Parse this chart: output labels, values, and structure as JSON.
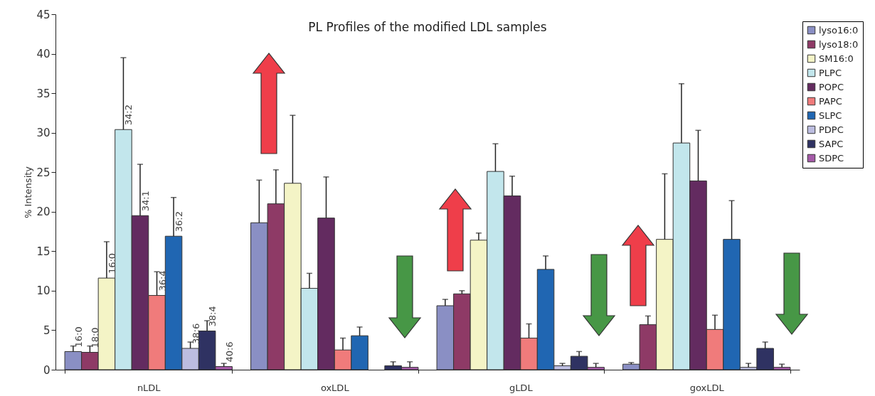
{
  "chart_data": {
    "type": "bar",
    "title": "PL  Profiles of  the modified LDL  samples",
    "ylabel": "% Intensity",
    "categories": [
      "nLDL",
      "oxLDL",
      "gLDL",
      "goxLDL"
    ],
    "series": [
      {
        "name": "lyso16:0",
        "color": "#8a8fc4",
        "values": [
          2.3,
          18.6,
          8.1,
          0.7
        ],
        "errors": [
          [
            2.3,
            3.0
          ],
          [
            18.6,
            24.0
          ],
          [
            8.1,
            8.9
          ],
          [
            0.7,
            0.9
          ]
        ],
        "value_labels": [
          "16:0",
          null,
          null,
          null
        ]
      },
      {
        "name": "lyso18:0",
        "color": "#8e3a66",
        "values": [
          2.2,
          21.0,
          9.6,
          5.7
        ],
        "errors": [
          [
            2.2,
            3.0
          ],
          [
            21.0,
            25.3
          ],
          [
            9.6,
            10.0
          ],
          [
            5.7,
            6.8
          ]
        ],
        "value_labels": [
          "18:0",
          null,
          null,
          null
        ]
      },
      {
        "name": "SM16:0",
        "color": "#f4f4c6",
        "values": [
          11.6,
          23.6,
          16.4,
          16.5
        ],
        "errors": [
          [
            11.6,
            16.2
          ],
          [
            23.6,
            32.2
          ],
          [
            16.4,
            17.3
          ],
          [
            16.5,
            24.8
          ]
        ],
        "value_labels": [
          "16:0",
          null,
          null,
          null
        ]
      },
      {
        "name": "PLPC",
        "color": "#c2e6ec",
        "values": [
          30.4,
          10.3,
          25.1,
          28.7
        ],
        "errors": [
          [
            30.4,
            39.5
          ],
          [
            10.3,
            12.2
          ],
          [
            25.1,
            28.6
          ],
          [
            28.7,
            36.2
          ]
        ],
        "value_labels": [
          "34:2",
          null,
          null,
          null
        ]
      },
      {
        "name": "POPC",
        "color": "#632b60",
        "values": [
          19.5,
          19.2,
          22.0,
          23.9
        ],
        "errors": [
          [
            19.5,
            26.0
          ],
          [
            19.2,
            24.4
          ],
          [
            22.0,
            24.5
          ],
          [
            23.9,
            30.3
          ]
        ],
        "value_labels": [
          "34:1",
          null,
          null,
          null
        ]
      },
      {
        "name": "PAPC",
        "color": "#f07b7b",
        "values": [
          9.4,
          2.5,
          4.0,
          5.1
        ],
        "errors": [
          [
            9.4,
            12.4
          ],
          [
            2.5,
            4.0
          ],
          [
            4.0,
            5.8
          ],
          [
            5.1,
            6.9
          ]
        ],
        "value_labels": [
          "36:4",
          null,
          null,
          null
        ]
      },
      {
        "name": "SLPC",
        "color": "#2066b2",
        "values": [
          16.9,
          4.3,
          12.7,
          16.5
        ],
        "errors": [
          [
            16.9,
            21.8
          ],
          [
            4.3,
            5.4
          ],
          [
            12.7,
            14.4
          ],
          [
            16.5,
            21.4
          ]
        ],
        "value_labels": [
          "36:2",
          null,
          null,
          null
        ]
      },
      {
        "name": "PDPC",
        "color": "#bcbde0",
        "values": [
          2.7,
          null,
          0.5,
          0.3
        ],
        "errors": [
          [
            2.7,
            3.5
          ],
          null,
          [
            0.5,
            0.8
          ],
          [
            0.3,
            0.8
          ]
        ],
        "value_labels": [
          "38:6",
          null,
          null,
          null
        ]
      },
      {
        "name": "SAPC",
        "color": "#2f3262",
        "values": [
          4.9,
          0.5,
          1.7,
          2.7
        ],
        "errors": [
          [
            4.9,
            6.2
          ],
          [
            0.5,
            1.0
          ],
          [
            1.7,
            2.3
          ],
          [
            2.7,
            3.5
          ]
        ],
        "value_labels": [
          "38:4",
          null,
          null,
          null
        ]
      },
      {
        "name": "SDPC",
        "color": "#a55aa8",
        "values": [
          0.4,
          0.3,
          0.3,
          0.3
        ],
        "errors": [
          [
            0.4,
            0.8
          ],
          [
            0.3,
            1.0
          ],
          [
            0.3,
            0.8
          ],
          [
            0.3,
            0.7
          ]
        ],
        "value_labels": [
          "40:6",
          null,
          null,
          null
        ]
      }
    ],
    "ylim": [
      0,
      45
    ],
    "yticks": [
      0,
      5,
      10,
      15,
      20,
      25,
      30,
      35,
      40,
      45
    ],
    "grid": false,
    "legend": "top right"
  }
}
